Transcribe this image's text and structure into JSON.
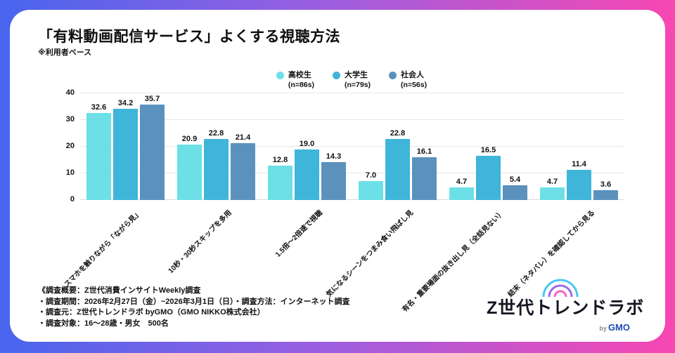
{
  "title": "「有料動画配信サービス」よくする視聴方法",
  "subtitle": "※利用者ベース",
  "colors": {
    "background_left": "#4865ee",
    "background_mid": "#9c5fe0",
    "background_right": "#f747b2",
    "card": "#ffffff",
    "grid": "#e7e7e7"
  },
  "chart_data": {
    "type": "bar",
    "title": "「有料動画配信サービス」よくする視聴方法",
    "categories": [
      "スマホを触りながら「ながら見」",
      "10秒・30秒スキップを多用",
      "1.5倍～2倍速で視聴",
      "気になるシーンをつまみ食い飛ばし見",
      "有名・重要場面の抜き出し見（全話見ない）",
      "結末（ネタバレ）を確認してから見る"
    ],
    "series": [
      {
        "name": "高校生",
        "n_label": "(n=86s)",
        "color": "#6ce0e6",
        "values": [
          32.6,
          20.9,
          12.8,
          7.0,
          4.7,
          4.7
        ]
      },
      {
        "name": "大学生",
        "n_label": "(n=79s)",
        "color": "#3fb5d9",
        "values": [
          34.2,
          22.8,
          19.0,
          22.8,
          16.5,
          11.4
        ]
      },
      {
        "name": "社会人",
        "n_label": "(n=56s)",
        "color": "#5b92bd",
        "values": [
          35.7,
          21.4,
          14.3,
          16.1,
          5.4,
          3.6
        ]
      }
    ],
    "ylim": [
      0,
      40
    ],
    "yticks": [
      0,
      10,
      20,
      30,
      40
    ],
    "grid": true,
    "legend_position": "top-center",
    "value_labels": "one-decimal"
  },
  "footer": {
    "lines": [
      "《調査概要：Z世代消費インサイトWeekly調査",
      "・調査期間：2026年2月27日（金）~2026年3月1日（日）・調査方法：インターネット調査",
      "・調査元：Z世代トレンドラボ byGMO（GMO NIKKO株式会社）",
      "・調査対象：16～28歳・男女　500名"
    ]
  },
  "logo": {
    "text": "Z世代トレンドラボ",
    "by": "by",
    "company": "GMO",
    "arc_colors": [
      "#49c8f2",
      "#9a6ce8",
      "#f863c2"
    ]
  }
}
